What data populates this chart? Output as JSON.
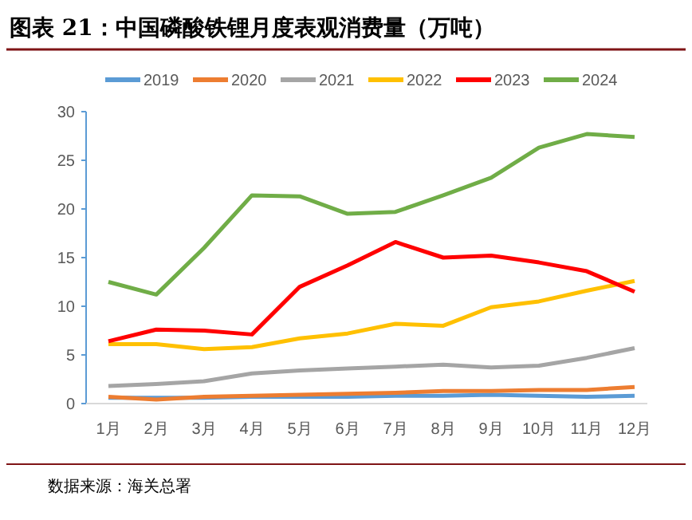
{
  "chart_data": {
    "type": "line",
    "title": "图表 21：中国磷酸铁锂月度表观消费量（万吨）",
    "annotations": [
      "数据来源：海关总署"
    ],
    "categories": [
      "1月",
      "2月",
      "3月",
      "4月",
      "5月",
      "6月",
      "7月",
      "8月",
      "9月",
      "10月",
      "11月",
      "12月"
    ],
    "series": [
      {
        "name": "2019",
        "color": "#5b9bd5",
        "values": [
          0.6,
          0.6,
          0.6,
          0.7,
          0.7,
          0.7,
          0.8,
          0.8,
          0.9,
          0.8,
          0.7,
          0.8
        ]
      },
      {
        "name": "2020",
        "color": "#ed7d31",
        "values": [
          0.7,
          0.4,
          0.7,
          0.8,
          0.9,
          1.0,
          1.1,
          1.3,
          1.3,
          1.4,
          1.4,
          1.7
        ]
      },
      {
        "name": "2021",
        "color": "#a5a5a5",
        "values": [
          1.8,
          2.0,
          2.3,
          3.1,
          3.4,
          3.6,
          3.8,
          4.0,
          3.7,
          3.9,
          4.7,
          5.7
        ]
      },
      {
        "name": "2022",
        "color": "#ffc000",
        "values": [
          6.1,
          6.1,
          5.6,
          5.8,
          6.7,
          7.2,
          8.2,
          8.0,
          9.9,
          10.5,
          11.6,
          12.6
        ]
      },
      {
        "name": "2023",
        "color": "#ff0000",
        "values": [
          6.4,
          7.6,
          7.5,
          7.1,
          12.0,
          14.2,
          16.6,
          15.0,
          15.2,
          14.5,
          13.6,
          11.5
        ]
      },
      {
        "name": "2024",
        "color": "#70ad47",
        "values": [
          12.5,
          11.2,
          16.0,
          21.4,
          21.3,
          19.5,
          19.7,
          21.4,
          23.2,
          26.3,
          27.7,
          27.4
        ]
      }
    ],
    "ylim": [
      0,
      30
    ],
    "yticks": [
      0,
      5,
      10,
      15,
      20,
      25,
      30
    ],
    "legend": "top",
    "grid": false
  }
}
